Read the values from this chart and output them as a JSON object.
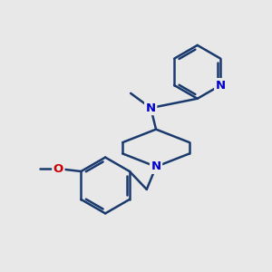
{
  "bg_color": "#e8e8e8",
  "bond_color": "#1a3a6e",
  "bond_width": 1.8,
  "n_color": "#0000cc",
  "o_color": "#cc0000",
  "font_size": 9.5,
  "figsize": [
    3.0,
    3.0
  ],
  "dpi": 100,
  "xlim": [
    0,
    10
  ],
  "ylim": [
    0,
    10
  ]
}
